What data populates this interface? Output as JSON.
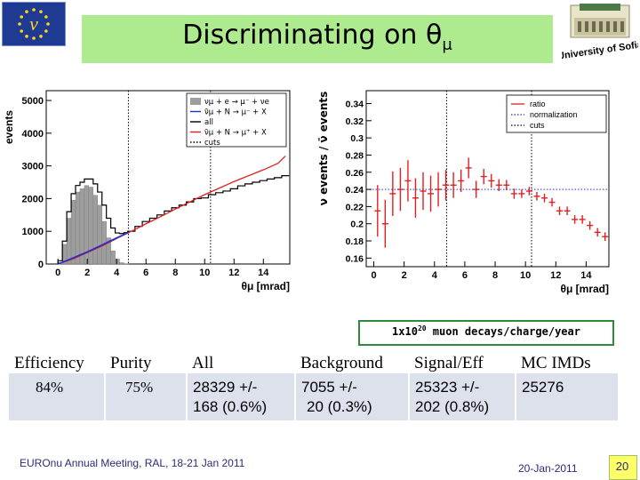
{
  "title": "Discriminating on θ",
  "title_sub": "μ",
  "logo_text": "University of Sofia",
  "decay_note": {
    "prefix": "1x10",
    "exp": "20",
    "suffix": " muon decays/charge/year"
  },
  "table": {
    "headers": [
      "Efficiency",
      "Purity",
      "All",
      "Background",
      "Signal/Eff",
      "MC IMDs"
    ],
    "row": [
      "84%",
      "75%",
      "28329 +/- 168 (0.6%)",
      "7055 +/- 20 (0.3%)",
      "25323 +/- 202 (0.8%)",
      "25276"
    ],
    "row_lines": {
      "all": [
        "28329 +/-",
        "168 (0.6%)"
      ],
      "background": [
        "7055 +/-",
        "20 (0.3%)"
      ],
      "signal": [
        "25323 +/-",
        "202 (0.8%)"
      ]
    }
  },
  "footer": {
    "meeting": "EUROnu Annual Meeting, RAL, 18-21 Jan 2011",
    "date": "20-Jan-2011",
    "page": "20"
  },
  "chart_data": [
    {
      "type": "line",
      "ylabel": "events",
      "xlabel": "θμ [mrad]",
      "xlim": [
        -0.8,
        15.8
      ],
      "ylim": [
        0,
        5300
      ],
      "xticks": [
        0,
        2,
        4,
        6,
        8,
        10,
        12,
        14
      ],
      "yticks": [
        0,
        1000,
        2000,
        3000,
        4000,
        5000
      ],
      "legend": [
        "νμ + e → μ⁻ + νe",
        "ν̄μ + N → μ⁻ + X",
        "all",
        "ν̄μ + N → μ⁺ + X",
        "cuts"
      ],
      "cuts": [
        4.8,
        10.4
      ],
      "series": [
        {
          "name": "all",
          "x": [
            0.15,
            0.45,
            0.75,
            1.05,
            1.35,
            1.65,
            1.95,
            2.25,
            2.55,
            2.85,
            3.15,
            3.45,
            3.75,
            4.05,
            4.35,
            4.65,
            5.0,
            5.5,
            6.0,
            6.5,
            7.0,
            7.5,
            8.0,
            8.5,
            9.0,
            9.5,
            10.0,
            10.5,
            11.0,
            11.5,
            12.0,
            12.5,
            13.0,
            13.5,
            14.0,
            14.5,
            15.0,
            15.5
          ],
          "y": [
            100,
            700,
            1600,
            2150,
            2400,
            2500,
            2600,
            2600,
            2450,
            2200,
            1800,
            1400,
            1100,
            950,
            930,
            960,
            1000,
            1150,
            1300,
            1400,
            1500,
            1620,
            1720,
            1800,
            1900,
            2000,
            2020,
            2120,
            2180,
            2230,
            2300,
            2390,
            2450,
            2500,
            2550,
            2600,
            2640,
            2700
          ]
        },
        {
          "name": "νμ + e → μ⁻ + νe",
          "x": [
            0.15,
            0.45,
            0.75,
            1.05,
            1.35,
            1.65,
            1.95,
            2.25,
            2.55,
            2.85,
            3.15,
            3.45,
            3.75,
            4.05,
            4.35,
            4.65
          ],
          "y": [
            50,
            600,
            1400,
            1950,
            2200,
            2300,
            2400,
            2350,
            2100,
            1800,
            1300,
            800,
            400,
            150,
            40,
            10
          ]
        },
        {
          "name": "ν̄μ + N → μ⁺ + X",
          "x": [
            0,
            1,
            2,
            3,
            4,
            5,
            6,
            7,
            8,
            9,
            10,
            11,
            12,
            13,
            14,
            15,
            15.5
          ],
          "y": [
            0,
            150,
            350,
            550,
            780,
            1000,
            1230,
            1450,
            1680,
            1900,
            2120,
            2320,
            2520,
            2700,
            2880,
            3080,
            3300
          ]
        },
        {
          "name": "ν̄μ + N → μ⁻ + X",
          "x": [
            0,
            0.5,
            1,
            2,
            3,
            4,
            4.8
          ],
          "y": [
            0,
            90,
            180,
            370,
            580,
            800,
            960
          ]
        }
      ]
    },
    {
      "type": "scatter",
      "ylabel": "ν events / ν̄ events",
      "xlabel": "θμ [mrad]",
      "xlim": [
        -0.5,
        15.5
      ],
      "ylim": [
        0.15,
        0.355
      ],
      "xticks": [
        0,
        2,
        4,
        6,
        8,
        10,
        12,
        14
      ],
      "yticks": [
        0.16,
        0.18,
        0.2,
        0.22,
        0.24,
        0.26,
        0.28,
        0.3,
        0.32,
        0.34
      ],
      "legend": [
        "ratio",
        "normalization",
        "cuts"
      ],
      "normalization": 0.24,
      "cuts": [
        4.8,
        10.4
      ],
      "series": [
        {
          "name": "ratio",
          "x": [
            0.25,
            0.75,
            1.25,
            1.75,
            2.25,
            2.75,
            3.25,
            3.75,
            4.25,
            4.75,
            5.25,
            5.75,
            6.25,
            6.75,
            7.25,
            7.75,
            8.25,
            8.75,
            9.25,
            9.75,
            10.25,
            10.75,
            11.25,
            11.75,
            12.25,
            12.75,
            13.25,
            13.75,
            14.25,
            14.75,
            15.25
          ],
          "y": [
            0.215,
            0.2,
            0.235,
            0.24,
            0.25,
            0.23,
            0.238,
            0.235,
            0.24,
            0.245,
            0.245,
            0.25,
            0.265,
            0.24,
            0.255,
            0.25,
            0.245,
            0.245,
            0.235,
            0.235,
            0.238,
            0.232,
            0.23,
            0.225,
            0.215,
            0.215,
            0.205,
            0.205,
            0.198,
            0.19,
            0.185
          ],
          "err": [
            0.03,
            0.028,
            0.026,
            0.025,
            0.024,
            0.023,
            0.022,
            0.021,
            0.02,
            0.018,
            0.015,
            0.013,
            0.012,
            0.01,
            0.009,
            0.008,
            0.007,
            0.006,
            0.006,
            0.005,
            0.005,
            0.005,
            0.005,
            0.005,
            0.005,
            0.005,
            0.005,
            0.005,
            0.005,
            0.005,
            0.005
          ]
        }
      ]
    }
  ]
}
